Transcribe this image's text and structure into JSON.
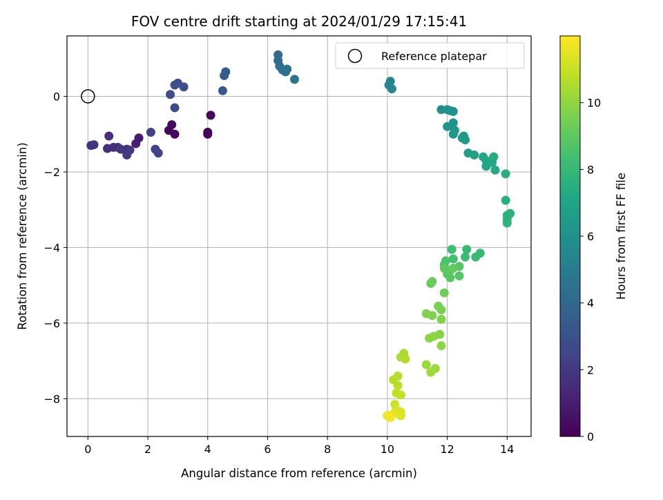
{
  "chart_data": {
    "type": "scatter",
    "title": "FOV centre drift starting at 2024/01/29 17:15:41",
    "xlabel": "Angular distance from reference (arcmin)",
    "ylabel": "Rotation from reference (arcmin)",
    "xlim": [
      -0.7,
      14.8
    ],
    "ylim": [
      -9.0,
      1.6
    ],
    "xticks": [
      0,
      2,
      4,
      6,
      8,
      10,
      12,
      14
    ],
    "yticks": [
      0,
      -2,
      -4,
      -6,
      -8
    ],
    "grid": true,
    "legend": {
      "position": "upper-right",
      "label": "Reference platepar"
    },
    "colorbar": {
      "label": "Hours from first FF file",
      "range": [
        0,
        12
      ],
      "ticks": [
        0,
        2,
        4,
        6,
        8,
        10
      ]
    },
    "reference": {
      "x": 0,
      "y": 0
    },
    "points": [
      {
        "x": 4.0,
        "y": -0.95,
        "t": 0.05
      },
      {
        "x": 4.0,
        "y": -1.0,
        "t": 0.1
      },
      {
        "x": 4.1,
        "y": -0.5,
        "t": 0.15
      },
      {
        "x": 2.7,
        "y": -0.9,
        "t": 0.2
      },
      {
        "x": 2.9,
        "y": -1.0,
        "t": 0.25
      },
      {
        "x": 2.8,
        "y": -0.75,
        "t": 0.3
      },
      {
        "x": 1.7,
        "y": -1.1,
        "t": 0.9
      },
      {
        "x": 1.6,
        "y": -1.25,
        "t": 1.0
      },
      {
        "x": 1.3,
        "y": -1.4,
        "t": 1.4
      },
      {
        "x": 1.0,
        "y": -1.35,
        "t": 1.5
      },
      {
        "x": 0.85,
        "y": -1.35,
        "t": 1.6
      },
      {
        "x": 0.65,
        "y": -1.38,
        "t": 1.65
      },
      {
        "x": 0.7,
        "y": -1.05,
        "t": 1.7
      },
      {
        "x": 0.1,
        "y": -1.3,
        "t": 1.8
      },
      {
        "x": 0.2,
        "y": -1.28,
        "t": 1.85
      },
      {
        "x": 1.1,
        "y": -1.4,
        "t": 1.9
      },
      {
        "x": 1.3,
        "y": -1.55,
        "t": 2.0
      },
      {
        "x": 1.4,
        "y": -1.42,
        "t": 2.05
      },
      {
        "x": 2.1,
        "y": -0.95,
        "t": 2.3
      },
      {
        "x": 2.25,
        "y": -1.4,
        "t": 2.4
      },
      {
        "x": 2.35,
        "y": -1.5,
        "t": 2.45
      },
      {
        "x": 2.9,
        "y": -0.3,
        "t": 2.7
      },
      {
        "x": 2.75,
        "y": 0.05,
        "t": 2.75
      },
      {
        "x": 2.9,
        "y": 0.3,
        "t": 2.85
      },
      {
        "x": 3.0,
        "y": 0.35,
        "t": 2.9
      },
      {
        "x": 3.2,
        "y": 0.25,
        "t": 2.95
      },
      {
        "x": 4.5,
        "y": 0.15,
        "t": 3.3
      },
      {
        "x": 4.55,
        "y": 0.55,
        "t": 3.4
      },
      {
        "x": 4.6,
        "y": 0.65,
        "t": 3.45
      },
      {
        "x": 6.35,
        "y": 1.1,
        "t": 4.1
      },
      {
        "x": 6.35,
        "y": 0.95,
        "t": 4.2
      },
      {
        "x": 6.4,
        "y": 0.8,
        "t": 4.3
      },
      {
        "x": 6.5,
        "y": 0.7,
        "t": 4.35
      },
      {
        "x": 6.6,
        "y": 0.65,
        "t": 4.4
      },
      {
        "x": 6.65,
        "y": 0.72,
        "t": 4.45
      },
      {
        "x": 6.9,
        "y": 0.45,
        "t": 4.55
      },
      {
        "x": 10.1,
        "y": 0.4,
        "t": 5.4
      },
      {
        "x": 10.05,
        "y": 0.3,
        "t": 5.45
      },
      {
        "x": 10.15,
        "y": 0.2,
        "t": 5.5
      },
      {
        "x": 11.8,
        "y": -0.35,
        "t": 5.9
      },
      {
        "x": 12.0,
        "y": -0.35,
        "t": 6.0
      },
      {
        "x": 12.2,
        "y": -0.4,
        "t": 6.05
      },
      {
        "x": 12.1,
        "y": -0.38,
        "t": 6.1
      },
      {
        "x": 12.0,
        "y": -0.8,
        "t": 6.15
      },
      {
        "x": 12.2,
        "y": -0.7,
        "t": 6.2
      },
      {
        "x": 12.25,
        "y": -0.9,
        "t": 6.25
      },
      {
        "x": 12.2,
        "y": -1.0,
        "t": 6.3
      },
      {
        "x": 12.5,
        "y": -1.1,
        "t": 6.4
      },
      {
        "x": 12.6,
        "y": -1.15,
        "t": 6.45
      },
      {
        "x": 12.55,
        "y": -1.05,
        "t": 6.5
      },
      {
        "x": 12.7,
        "y": -1.5,
        "t": 6.8
      },
      {
        "x": 12.9,
        "y": -1.55,
        "t": 6.85
      },
      {
        "x": 13.2,
        "y": -1.6,
        "t": 7.0
      },
      {
        "x": 13.3,
        "y": -1.7,
        "t": 7.05
      },
      {
        "x": 13.3,
        "y": -1.85,
        "t": 7.1
      },
      {
        "x": 13.5,
        "y": -1.75,
        "t": 7.2
      },
      {
        "x": 13.6,
        "y": -1.95,
        "t": 7.25
      },
      {
        "x": 13.55,
        "y": -1.6,
        "t": 7.3
      },
      {
        "x": 13.95,
        "y": -2.05,
        "t": 7.4
      },
      {
        "x": 13.95,
        "y": -2.75,
        "t": 7.5
      },
      {
        "x": 14.1,
        "y": -3.1,
        "t": 7.55
      },
      {
        "x": 14.0,
        "y": -3.15,
        "t": 7.6
      },
      {
        "x": 14.0,
        "y": -3.25,
        "t": 7.65
      },
      {
        "x": 14.0,
        "y": -3.35,
        "t": 7.7
      },
      {
        "x": 13.1,
        "y": -4.15,
        "t": 8.0
      },
      {
        "x": 12.95,
        "y": -4.25,
        "t": 8.05
      },
      {
        "x": 12.65,
        "y": -4.05,
        "t": 8.1
      },
      {
        "x": 12.6,
        "y": -4.25,
        "t": 8.15
      },
      {
        "x": 12.15,
        "y": -4.05,
        "t": 8.3
      },
      {
        "x": 12.2,
        "y": -4.3,
        "t": 8.35
      },
      {
        "x": 11.95,
        "y": -4.35,
        "t": 8.5
      },
      {
        "x": 11.9,
        "y": -4.45,
        "t": 8.6
      },
      {
        "x": 12.1,
        "y": -4.6,
        "t": 8.7
      },
      {
        "x": 12.4,
        "y": -4.5,
        "t": 8.75
      },
      {
        "x": 12.4,
        "y": -4.75,
        "t": 8.8
      },
      {
        "x": 12.1,
        "y": -4.8,
        "t": 8.85
      },
      {
        "x": 12.0,
        "y": -4.7,
        "t": 8.9
      },
      {
        "x": 11.9,
        "y": -4.55,
        "t": 9.0
      },
      {
        "x": 12.2,
        "y": -4.55,
        "t": 9.05
      },
      {
        "x": 11.5,
        "y": -4.9,
        "t": 9.2
      },
      {
        "x": 11.45,
        "y": -4.95,
        "t": 9.25
      },
      {
        "x": 11.9,
        "y": -5.2,
        "t": 9.35
      },
      {
        "x": 11.7,
        "y": -5.55,
        "t": 9.5
      },
      {
        "x": 11.8,
        "y": -5.65,
        "t": 9.55
      },
      {
        "x": 11.3,
        "y": -5.75,
        "t": 9.65
      },
      {
        "x": 11.5,
        "y": -5.8,
        "t": 9.7
      },
      {
        "x": 11.8,
        "y": -5.9,
        "t": 9.75
      },
      {
        "x": 11.75,
        "y": -6.3,
        "t": 9.85
      },
      {
        "x": 11.55,
        "y": -6.35,
        "t": 9.9
      },
      {
        "x": 11.4,
        "y": -6.4,
        "t": 9.95
      },
      {
        "x": 11.8,
        "y": -6.6,
        "t": 10.0
      },
      {
        "x": 11.3,
        "y": -7.1,
        "t": 10.2
      },
      {
        "x": 11.6,
        "y": -7.2,
        "t": 10.25
      },
      {
        "x": 11.45,
        "y": -7.3,
        "t": 10.3
      },
      {
        "x": 10.55,
        "y": -6.8,
        "t": 10.45
      },
      {
        "x": 10.45,
        "y": -6.9,
        "t": 10.5
      },
      {
        "x": 10.6,
        "y": -6.95,
        "t": 10.55
      },
      {
        "x": 10.35,
        "y": -7.4,
        "t": 10.65
      },
      {
        "x": 10.2,
        "y": -7.5,
        "t": 10.7
      },
      {
        "x": 10.35,
        "y": -7.65,
        "t": 10.75
      },
      {
        "x": 10.3,
        "y": -7.85,
        "t": 10.85
      },
      {
        "x": 10.45,
        "y": -7.9,
        "t": 10.9
      },
      {
        "x": 10.25,
        "y": -8.15,
        "t": 11.1
      },
      {
        "x": 10.3,
        "y": -8.3,
        "t": 11.2
      },
      {
        "x": 10.45,
        "y": -8.35,
        "t": 11.3
      },
      {
        "x": 10.45,
        "y": -8.45,
        "t": 11.4
      },
      {
        "x": 10.2,
        "y": -8.4,
        "t": 11.5
      },
      {
        "x": 10.0,
        "y": -8.45,
        "t": 11.6
      },
      {
        "x": 10.05,
        "y": -8.45,
        "t": 11.7
      },
      {
        "x": 10.1,
        "y": -8.5,
        "t": 11.8
      }
    ]
  }
}
